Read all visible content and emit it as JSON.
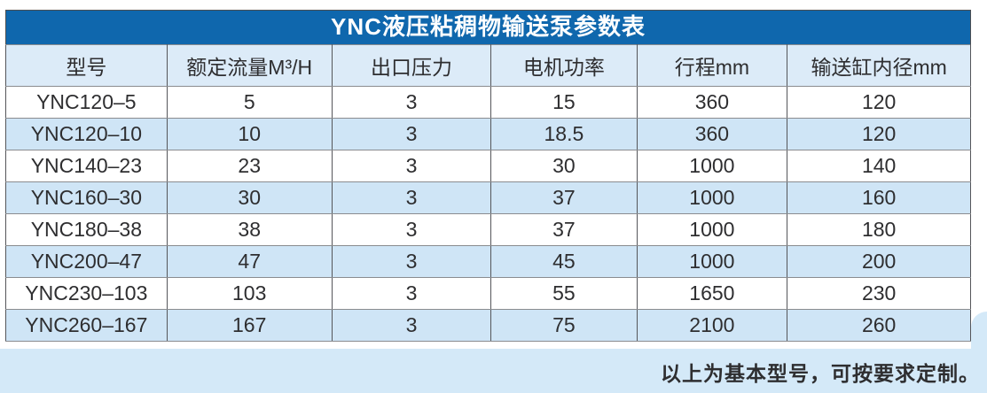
{
  "table": {
    "title": "YNC液压粘稠物输送泵参数表",
    "columns": [
      "型号",
      "额定流量M³/H",
      "出口压力",
      "电机功率",
      "行程mm",
      "输送缸内径mm"
    ],
    "rows": [
      [
        "YNC120–5",
        "5",
        "3",
        "15",
        "360",
        "120"
      ],
      [
        "YNC120–10",
        "10",
        "3",
        "18.5",
        "360",
        "120"
      ],
      [
        "YNC140–23",
        "23",
        "3",
        "30",
        "1000",
        "140"
      ],
      [
        "YNC160–30",
        "30",
        "3",
        "37",
        "1000",
        "160"
      ],
      [
        "YNC180–38",
        "38",
        "3",
        "37",
        "1000",
        "180"
      ],
      [
        "YNC200–47",
        "47",
        "3",
        "45",
        "1000",
        "200"
      ],
      [
        "YNC230–103",
        "103",
        "3",
        "55",
        "1650",
        "230"
      ],
      [
        "YNC260–167",
        "167",
        "3",
        "75",
        "2100",
        "260"
      ]
    ]
  },
  "footer": {
    "note": "以上为基本型号，可按要求定制。"
  },
  "colors": {
    "accent_blue": "#0f67ad",
    "header_row_bg": "#dcebf8",
    "alt_row_bg": "#cfe5f6",
    "bottom_band_bg": "#d4e9f8"
  },
  "chart_data": {
    "type": "table",
    "title": "YNC液压粘稠物输送泵参数表",
    "columns": [
      "型号",
      "额定流量M³/H",
      "出口压力",
      "电机功率",
      "行程mm",
      "输送缸内径mm"
    ],
    "rows": [
      [
        "YNC120–5",
        5,
        3,
        15,
        360,
        120
      ],
      [
        "YNC120–10",
        10,
        3,
        18.5,
        360,
        120
      ],
      [
        "YNC140–23",
        23,
        3,
        30,
        1000,
        140
      ],
      [
        "YNC160–30",
        30,
        3,
        37,
        1000,
        160
      ],
      [
        "YNC180–38",
        38,
        3,
        37,
        1000,
        180
      ],
      [
        "YNC200–47",
        47,
        3,
        45,
        1000,
        200
      ],
      [
        "YNC230–103",
        103,
        3,
        55,
        1650,
        230
      ],
      [
        "YNC260–167",
        167,
        3,
        75,
        2100,
        260
      ]
    ],
    "note": "以上为基本型号，可按要求定制。"
  }
}
